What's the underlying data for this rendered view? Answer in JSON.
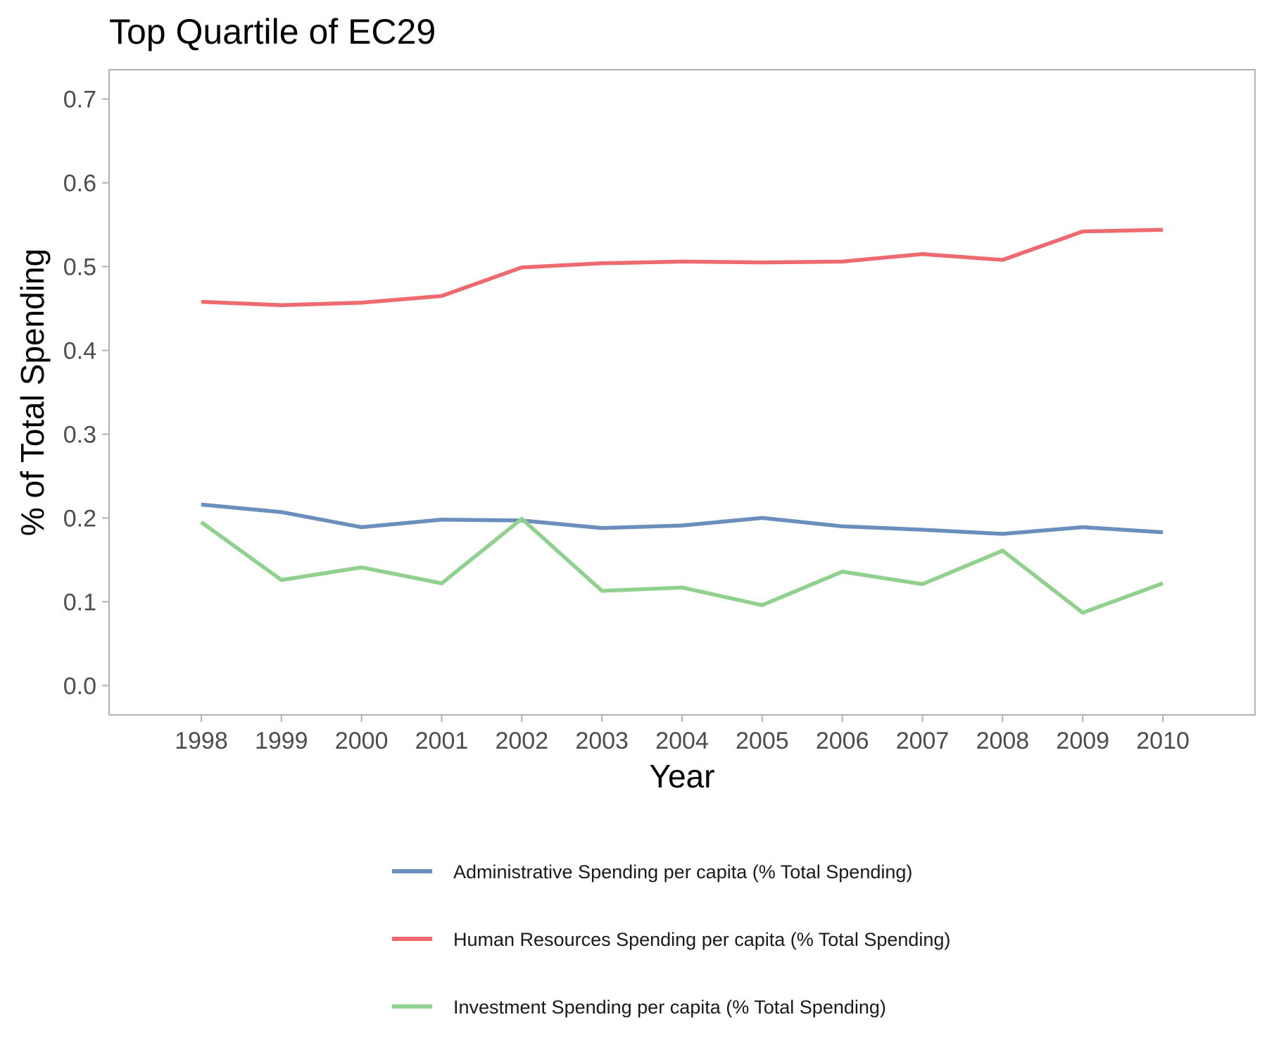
{
  "chart_data": {
    "type": "line",
    "title": "Top Quartile of EC29",
    "xlabel": "Year",
    "ylabel": "% of Total Spending",
    "x": [
      1998,
      1999,
      2000,
      2001,
      2002,
      2003,
      2004,
      2005,
      2006,
      2007,
      2008,
      2009,
      2010
    ],
    "x_tick_labels": [
      "1998",
      "1999",
      "2000",
      "2001",
      "2002",
      "2003",
      "2004",
      "2005",
      "2006",
      "2007",
      "2008",
      "2009",
      "2010"
    ],
    "xlim": [
      1996.85,
      2011.15
    ],
    "ylim": [
      -0.035,
      0.735
    ],
    "y_ticks": [
      0.0,
      0.1,
      0.2,
      0.3,
      0.4,
      0.5,
      0.6,
      0.7
    ],
    "y_tick_labels": [
      "0.0",
      "0.1",
      "0.2",
      "0.3",
      "0.4",
      "0.5",
      "0.6",
      "0.7"
    ],
    "grid": false,
    "legend_position": "bottom",
    "series": [
      {
        "name": "Administrative Spending per capita (% Total Spending)",
        "color": "#6a8fbc",
        "values": [
          0.216,
          0.207,
          0.189,
          0.198,
          0.197,
          0.188,
          0.191,
          0.2,
          0.19,
          0.186,
          0.181,
          0.189,
          0.183
        ]
      },
      {
        "name": "Human Resources Spending per capita (% Total Spending)",
        "color": "#ee6a6f",
        "values": [
          0.458,
          0.454,
          0.457,
          0.465,
          0.499,
          0.504,
          0.506,
          0.505,
          0.506,
          0.515,
          0.508,
          0.542,
          0.544
        ]
      },
      {
        "name": "Investment Spending per capita (% Total Spending)",
        "color": "#8fd18d",
        "values": [
          0.195,
          0.126,
          0.141,
          0.122,
          0.199,
          0.113,
          0.117,
          0.096,
          0.136,
          0.121,
          0.161,
          0.087,
          0.122
        ]
      }
    ]
  }
}
